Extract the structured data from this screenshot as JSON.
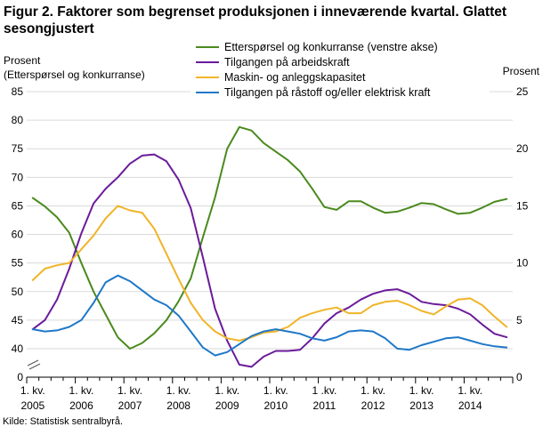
{
  "figure": {
    "title": "Figur 2. Faktorer som begrenset produksjonen i inneværende kvartal. Glattet sesongjustert",
    "source": "Kilde: Statistisk sentralbyrå."
  },
  "chart_data": {
    "type": "line",
    "title": "Figur 2. Faktorer som begrenset produksjonen i inneværende kvartal. Glattet sesongjustert",
    "left_axis": {
      "label_lines": [
        "Prosent",
        "(Etterspørsel  og konkurranse)"
      ],
      "range": [
        40,
        85
      ],
      "ticks": [
        40,
        45,
        50,
        55,
        60,
        65,
        70,
        75,
        80,
        85
      ],
      "extra_tick": 0,
      "break_between": [
        0,
        40
      ]
    },
    "right_axis": {
      "label": "Prosent",
      "range": [
        0,
        25
      ],
      "ticks": [
        0,
        5,
        10,
        15,
        20,
        25
      ]
    },
    "x_axis": {
      "categories": [
        "2005",
        "2006",
        "2007",
        "2008",
        "2009",
        "2010",
        "2011",
        "2012",
        "2013",
        "2014"
      ],
      "tick_prefix": "1. kv.",
      "tick_prefix_alt": {
        "index": 6,
        "text": "1 .kv."
      },
      "quarters_per_year": 4
    },
    "legend": {
      "position": "top-center",
      "entries": [
        "Etterspørsel og konkurranse (venstre akse)",
        "Tilgangen på arbeidskraft",
        "Maskin- og anleggskapasitet",
        "Tilgangen på råstoff og/eller elektrisk kraft"
      ]
    },
    "grid": "horizontal",
    "series": [
      {
        "name": "Etterspørsel og konkurranse (venstre akse)",
        "axis": "left",
        "color": "#4a8a1e",
        "values": [
          66.4,
          64.9,
          63.0,
          60.3,
          55.0,
          50.0,
          46.0,
          42.0,
          40.0,
          41.0,
          42.7,
          45.0,
          48.3,
          52.3,
          59.5,
          66.5,
          75.0,
          78.8,
          78.2,
          76.0,
          74.5,
          73.0,
          71.0,
          68.0,
          64.8,
          64.3,
          65.8,
          65.8,
          64.7,
          63.8,
          64.0,
          64.7,
          65.5,
          65.3,
          64.4,
          63.6,
          63.8,
          64.7,
          65.7,
          66.2
        ]
      },
      {
        "name": "Tilgangen på arbeidskraft",
        "axis": "right",
        "color": "#6a1b9a",
        "values": [
          4.2,
          5.0,
          6.8,
          9.5,
          12.6,
          15.2,
          16.5,
          17.5,
          18.7,
          19.4,
          19.5,
          18.9,
          17.3,
          14.8,
          10.5,
          6.0,
          3.2,
          1.1,
          0.9,
          1.8,
          2.3,
          2.3,
          2.4,
          3.4,
          4.7,
          5.6,
          6.1,
          6.8,
          7.3,
          7.6,
          7.7,
          7.3,
          6.6,
          6.4,
          6.3,
          6.0,
          5.5,
          4.6,
          3.8,
          3.5
        ]
      },
      {
        "name": "Maskin- og anleggskapasitet",
        "axis": "right",
        "color": "#f0b428",
        "values": [
          8.5,
          9.5,
          9.8,
          10.0,
          11.2,
          12.4,
          13.9,
          15.0,
          14.6,
          14.4,
          13.0,
          10.8,
          8.6,
          6.5,
          5.0,
          4.0,
          3.4,
          3.2,
          3.5,
          3.9,
          4.0,
          4.4,
          5.2,
          5.6,
          5.9,
          6.1,
          5.6,
          5.6,
          6.3,
          6.6,
          6.7,
          6.3,
          5.8,
          5.5,
          6.2,
          6.8,
          6.9,
          6.3,
          5.3,
          4.4
        ]
      },
      {
        "name": "Tilgangen på råstoff og/eller elektrisk kraft",
        "axis": "right",
        "color": "#1f78c8",
        "values": [
          4.2,
          4.0,
          4.1,
          4.4,
          5.0,
          6.5,
          8.3,
          8.9,
          8.4,
          7.6,
          6.8,
          6.3,
          5.4,
          4.0,
          2.6,
          1.9,
          2.2,
          2.9,
          3.6,
          4.0,
          4.2,
          4.0,
          3.8,
          3.4,
          3.2,
          3.5,
          4.0,
          4.1,
          4.0,
          3.4,
          2.5,
          2.4,
          2.8,
          3.1,
          3.4,
          3.5,
          3.2,
          2.9,
          2.7,
          2.6
        ]
      }
    ]
  }
}
